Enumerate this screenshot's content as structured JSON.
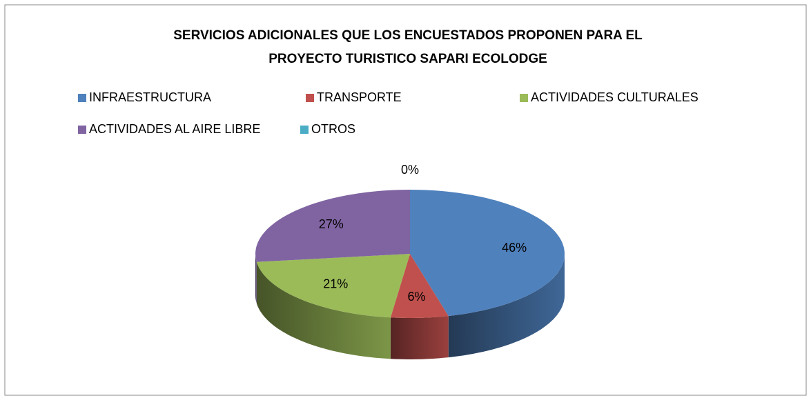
{
  "chart_data": {
    "type": "pie3d",
    "title": [
      "SERVICIOS ADICIONALES QUE LOS ENCUESTADOS PROPONEN PARA EL",
      "PROYECTO TURISTICO SAPARI ECOLODGE"
    ],
    "categories": [
      "INFRAESTRUCTURA",
      "TRANSPORTE",
      "ACTIVIDADES CULTURALES",
      "ACTIVIDADES AL AIRE LIBRE",
      "OTROS"
    ],
    "values": [
      46,
      6,
      21,
      27,
      0
    ],
    "value_labels": [
      "46%",
      "6%",
      "21%",
      "27%",
      "0%"
    ],
    "colors": [
      "#4f81bd",
      "#c0504d",
      "#9bbb59",
      "#8064a2",
      "#4bacc6"
    ],
    "legend": "top"
  }
}
